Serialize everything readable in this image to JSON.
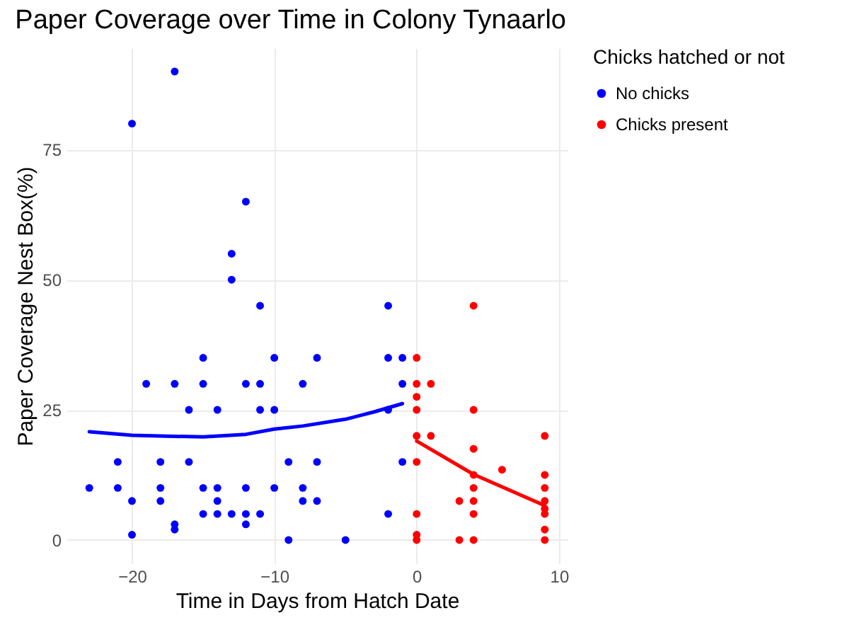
{
  "chart_data": {
    "type": "scatter",
    "title": "Paper Coverage over Time in Colony Tynaarlo",
    "xlabel": "Time in Days from Hatch Date",
    "ylabel": "Paper Coverage Nest Box(%)",
    "legend_title": "Chicks hatched or not",
    "legend": "right",
    "grid": true,
    "marker": "circle",
    "xlim": [
      -24.6,
      10.6
    ],
    "xticks": [
      -20,
      -10,
      0,
      10
    ],
    "ylim": [
      -4.5,
      94.5
    ],
    "yticks": [
      0,
      25,
      50,
      75
    ],
    "series": [
      {
        "name": "No chicks",
        "color": "#0000ff",
        "x": [
          -23,
          -21,
          -21,
          -20,
          -20,
          -20,
          -19,
          -18,
          -18,
          -18,
          -17,
          -17,
          -17,
          -17,
          -16,
          -16,
          -15,
          -15,
          -15,
          -15,
          -14,
          -14,
          -14,
          -14,
          -13,
          -13,
          -13,
          -12,
          -12,
          -12,
          -12,
          -12,
          -11,
          -11,
          -11,
          -11,
          -10,
          -10,
          -10,
          -9,
          -9,
          -8,
          -8,
          -8,
          -7,
          -7,
          -7,
          -5,
          -2,
          -2,
          -2,
          -2,
          -1,
          -1,
          -1
        ],
        "values": [
          10,
          15,
          10,
          80,
          7.5,
          1,
          30,
          15,
          10,
          7.5,
          90,
          30,
          3,
          2,
          25,
          15,
          35,
          30,
          10,
          5,
          25,
          10,
          7.5,
          5,
          55,
          50,
          5,
          65,
          30,
          10,
          5,
          3,
          45,
          30,
          25,
          5,
          35,
          25,
          10,
          15,
          0,
          30,
          10,
          7.5,
          35,
          15,
          7.5,
          0,
          45,
          35,
          25,
          5,
          35,
          30,
          15
        ]
      },
      {
        "name": "Chicks present",
        "color": "#ff0000",
        "x": [
          0,
          0,
          0,
          0,
          0,
          0,
          0,
          0,
          0,
          1,
          1,
          3,
          3,
          4,
          4,
          4,
          4,
          4,
          4,
          4,
          4,
          6,
          9,
          9,
          9,
          9,
          9,
          9,
          9,
          9
        ],
        "values": [
          35,
          30,
          27.5,
          25,
          20,
          15,
          5,
          1,
          0,
          30,
          20,
          7.5,
          0,
          45,
          25,
          17.5,
          12.5,
          10,
          7.5,
          5,
          0,
          13.5,
          20,
          12.5,
          10,
          7.5,
          6,
          5,
          2,
          0
        ]
      },
      {
        "type": "line",
        "marker": "none",
        "color": "#0000ff",
        "x": [
          -23,
          -20,
          -15,
          -12,
          -10,
          -8,
          -5,
          -3,
          -1
        ],
        "values": [
          20.8,
          20.1,
          19.8,
          20.3,
          21.3,
          21.9,
          23.2,
          24.6,
          26.2
        ]
      },
      {
        "type": "line",
        "marker": "none",
        "color": "#ff0000",
        "x": [
          0,
          4,
          9
        ],
        "values": [
          19,
          12.6,
          6.6
        ]
      }
    ]
  }
}
